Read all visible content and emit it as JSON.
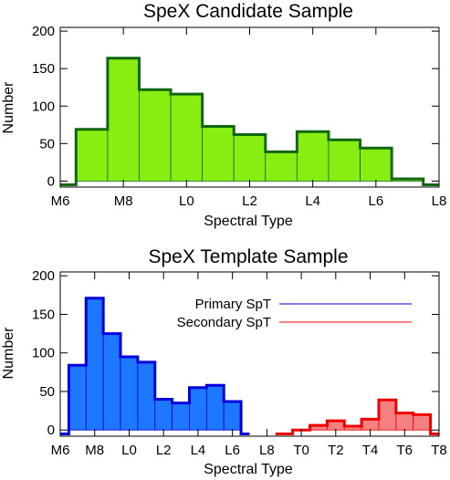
{
  "chart_data": [
    {
      "type": "bar",
      "title": "SpeX Candidate Sample",
      "xlabel": "Spectral Type",
      "ylabel": "Number",
      "xlim": [
        6,
        18
      ],
      "ylim": [
        -8,
        205
      ],
      "x_ticks": [
        {
          "value": 6,
          "label": "M6"
        },
        {
          "value": 8,
          "label": "M8"
        },
        {
          "value": 10,
          "label": "L0"
        },
        {
          "value": 12,
          "label": "L2"
        },
        {
          "value": 14,
          "label": "L4"
        },
        {
          "value": 16,
          "label": "L6"
        },
        {
          "value": 18,
          "label": "L8"
        }
      ],
      "y_ticks": [
        0,
        50,
        100,
        150,
        200
      ],
      "series": [
        {
          "fill": "#88ee11",
          "edge": "#116611",
          "bin_edges": [
            6,
            6.5,
            7.5,
            8.5,
            9.5,
            10.5,
            11.5,
            12.5,
            13.5,
            14.5,
            15.5,
            16.5,
            17.5,
            18
          ],
          "counts": [
            -5,
            69,
            164,
            122,
            116,
            73,
            62,
            39,
            66,
            55,
            44,
            3,
            -5
          ]
        }
      ]
    },
    {
      "type": "bar",
      "title": "SpeX Template Sample",
      "xlabel": "Spectral Type",
      "ylabel": "Number",
      "xlim": [
        6,
        28
      ],
      "ylim": [
        -8,
        205
      ],
      "x_ticks": [
        {
          "value": 6,
          "label": "M6"
        },
        {
          "value": 8,
          "label": "M8"
        },
        {
          "value": 10,
          "label": "L0"
        },
        {
          "value": 12,
          "label": "L2"
        },
        {
          "value": 14,
          "label": "L4"
        },
        {
          "value": 16,
          "label": "L6"
        },
        {
          "value": 18,
          "label": "L8"
        },
        {
          "value": 20,
          "label": "T0"
        },
        {
          "value": 22,
          "label": "T2"
        },
        {
          "value": 24,
          "label": "T4"
        },
        {
          "value": 26,
          "label": "T6"
        },
        {
          "value": 28,
          "label": "T8"
        }
      ],
      "y_ticks": [
        0,
        50,
        100,
        150,
        200
      ],
      "series": [
        {
          "name": "Primary SpT",
          "line_color": "#0000cc",
          "fill": "#1e78ff",
          "edge": "#0000dd",
          "bin_edges": [
            6,
            6.5,
            7.5,
            8.5,
            9.5,
            10.5,
            11.5,
            12.5,
            13.5,
            14.5,
            15.5,
            16.5,
            17
          ],
          "counts": [
            -5,
            84,
            171,
            125,
            95,
            88,
            40,
            35,
            55,
            58,
            37,
            -5
          ]
        },
        {
          "name": "Secondary SpT",
          "line_color": "#ee0000",
          "fill": "#f48080",
          "edge": "#ee0000",
          "bin_edges": [
            18.5,
            19.5,
            20.5,
            21.5,
            22.5,
            23.5,
            24.5,
            25.5,
            26.5,
            27.5,
            28
          ],
          "counts": [
            -5,
            0,
            6,
            12,
            5,
            14,
            39,
            22,
            20,
            -5
          ]
        }
      ]
    }
  ]
}
